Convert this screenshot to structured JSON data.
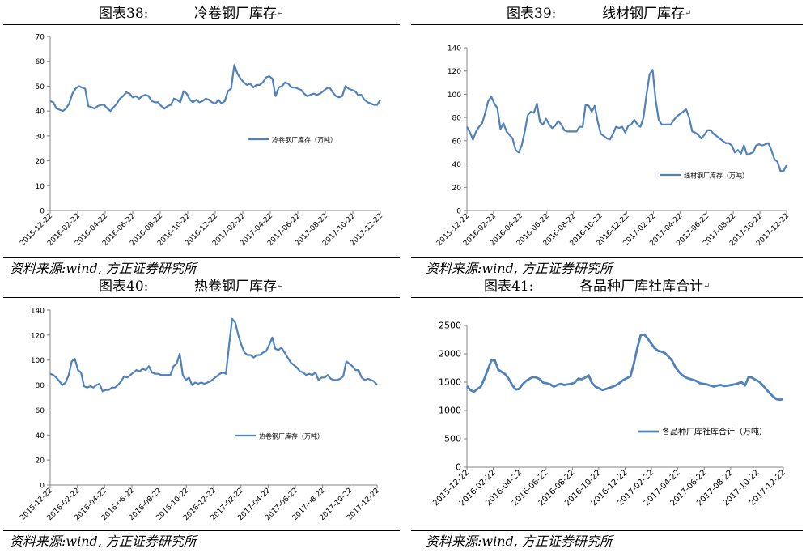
{
  "colors": {
    "line": "#4f81bd",
    "axis": "#868686",
    "text": "#000000"
  },
  "return_mark": "↵",
  "panels": [
    {
      "title_num": "图表38:",
      "title_text": "冷卷钢厂库存",
      "source": "资料来源:wind, 方正证券研究所",
      "chart_data": {
        "type": "line",
        "ylim": [
          0,
          70
        ],
        "yticks": [
          0,
          10,
          20,
          30,
          40,
          50,
          60,
          70
        ],
        "xtick_labels": [
          "2015-12-22",
          "2016-02-22",
          "2016-04-22",
          "2016-06-22",
          "2016-08-22",
          "2016-10-22",
          "2016-12-22",
          "2017-02-22",
          "2017-04-22",
          "2017-06-22",
          "2017-08-22",
          "2017-10-22",
          "2017-12-22"
        ],
        "legend": "冷卷钢厂库存（万吨）",
        "values": [
          44,
          43.5,
          41,
          40.5,
          40,
          41,
          43,
          47,
          49,
          50,
          49.5,
          49,
          42,
          41.5,
          41,
          42,
          42.5,
          42.5,
          41,
          40,
          41.5,
          43,
          45,
          46,
          47.5,
          47,
          45.5,
          46,
          45,
          46,
          46.5,
          46,
          44,
          43.5,
          43.5,
          42,
          41,
          42,
          42.5,
          45,
          44.5,
          43.5,
          48,
          47,
          44.5,
          43.5,
          44.5,
          43.5,
          44,
          45,
          44.5,
          43.5,
          43,
          44.5,
          43,
          44,
          48,
          49,
          58.5,
          55,
          53,
          51.5,
          50.5,
          51,
          49.5,
          50.5,
          50.5,
          51.5,
          53.5,
          54,
          53,
          46,
          49.5,
          50,
          51.5,
          51,
          49.5,
          49.5,
          49,
          48.5,
          47,
          46,
          46.5,
          47,
          46.5,
          47,
          48,
          49,
          49.5,
          47.5,
          46,
          45.5,
          46,
          50,
          49,
          48.5,
          48,
          46.5,
          46.5,
          44.5,
          43.5,
          43,
          42.5,
          42.5,
          44.5
        ]
      }
    },
    {
      "title_num": "图表39:",
      "title_text": "线材钢厂库存",
      "source": "资料来源:wind, 方正证券研究所",
      "chart_data": {
        "type": "line",
        "ylim": [
          0,
          140
        ],
        "yticks": [
          0,
          20,
          40,
          60,
          80,
          100,
          120,
          140
        ],
        "xtick_labels": [
          "2015-12-22",
          "2016-02-22",
          "2016-04-22",
          "2016-06-22",
          "2016-08-22",
          "2016-10-22",
          "2016-12-22",
          "2017-02-22",
          "2017-04-22",
          "2017-06-22",
          "2017-08-22",
          "2017-10-22",
          "2017-12-22"
        ],
        "legend": "线材钢厂库存（万吨）",
        "values": [
          72,
          67,
          61,
          68,
          72,
          75,
          84,
          94,
          98,
          92,
          88,
          70,
          75,
          68,
          65,
          62,
          52,
          50,
          56,
          68,
          82,
          85,
          84,
          92,
          76,
          74,
          79,
          74,
          71,
          73,
          77,
          74,
          69,
          68,
          68,
          68,
          68,
          72,
          72,
          91,
          90,
          85,
          90,
          76,
          66,
          64,
          62,
          61,
          66,
          72,
          71,
          72,
          67,
          73,
          74,
          78,
          74,
          72,
          80,
          100,
          117,
          121,
          95,
          78,
          74,
          74,
          74,
          74,
          78,
          81,
          83,
          85,
          87,
          80,
          68,
          67,
          65,
          62,
          65,
          69,
          69,
          66,
          64,
          62,
          60,
          58,
          58,
          56,
          50,
          52,
          49,
          56,
          48,
          49,
          50,
          56,
          57,
          56,
          57,
          58,
          52,
          44,
          42,
          34,
          34,
          39
        ]
      }
    },
    {
      "title_num": "图表40:",
      "title_text": "热卷钢厂库存",
      "source": "资料来源:wind, 方正证券研究所",
      "chart_data": {
        "type": "line",
        "ylim": [
          0,
          140
        ],
        "yticks": [
          0,
          20,
          40,
          60,
          80,
          100,
          120,
          140
        ],
        "xtick_labels": [
          "2015-12-22",
          "2016-02-22",
          "2016-04-22",
          "2016-06-22",
          "2016-08-22",
          "2016-10-22",
          "2016-12-22",
          "2017-02-22",
          "2017-04-22",
          "2017-06-22",
          "2017-08-22",
          "2017-10-22",
          "2017-12-22"
        ],
        "legend": "热卷钢厂库存（万吨）",
        "values": [
          89,
          88,
          86,
          83,
          80,
          82,
          88,
          99,
          101,
          92,
          90,
          79,
          78,
          79,
          78,
          80,
          81,
          75,
          76,
          76,
          78,
          78,
          80,
          83,
          87,
          86,
          88,
          90,
          92,
          91,
          93,
          92,
          95,
          90,
          89,
          89,
          88,
          88,
          88,
          88,
          95,
          97,
          105,
          88,
          84,
          86,
          80,
          82,
          81,
          82,
          81,
          82,
          83,
          85,
          87,
          89,
          90,
          89,
          112,
          133,
          130,
          120,
          112,
          106,
          104,
          104,
          102,
          104,
          104,
          106,
          107,
          112,
          118,
          109,
          108,
          110,
          106,
          102,
          98,
          96,
          94,
          91,
          90,
          88,
          89,
          88,
          90,
          84,
          86,
          86,
          88,
          85,
          84,
          84,
          85,
          87,
          99,
          97,
          95,
          92,
          92,
          86,
          84,
          85,
          84,
          83,
          80
        ]
      }
    },
    {
      "title_num": "图表41:",
      "title_text": "各品种厂库社库合计",
      "source": "资料来源:wind, 方正证券研究所",
      "chart_data": {
        "type": "line",
        "ylim": [
          0,
          2500
        ],
        "yticks": [
          0,
          500,
          1000,
          1500,
          2000,
          2500
        ],
        "xtick_labels": [
          "2015-12-22",
          "2016-02-22",
          "2016-04-22",
          "2016-06-22",
          "2016-08-22",
          "2016-10-22",
          "2016-12-22",
          "2017-02-22",
          "2017-04-22",
          "2017-06-22",
          "2017-08-22",
          "2017-10-22",
          "2017-12-22"
        ],
        "legend": "各品种厂库社库合计（万吨）",
        "values": [
          1430,
          1360,
          1330,
          1380,
          1420,
          1560,
          1720,
          1880,
          1890,
          1720,
          1680,
          1640,
          1560,
          1450,
          1370,
          1380,
          1460,
          1520,
          1560,
          1590,
          1580,
          1550,
          1490,
          1480,
          1460,
          1420,
          1450,
          1470,
          1450,
          1460,
          1470,
          1490,
          1560,
          1550,
          1580,
          1620,
          1480,
          1420,
          1390,
          1360,
          1380,
          1400,
          1420,
          1450,
          1490,
          1540,
          1570,
          1600,
          1820,
          2100,
          2330,
          2340,
          2270,
          2180,
          2100,
          2050,
          2040,
          2010,
          1950,
          1880,
          1760,
          1680,
          1620,
          1580,
          1560,
          1540,
          1520,
          1480,
          1470,
          1460,
          1440,
          1420,
          1440,
          1450,
          1430,
          1440,
          1450,
          1460,
          1480,
          1500,
          1440,
          1590,
          1580,
          1540,
          1510,
          1450,
          1380,
          1310,
          1250,
          1200,
          1190,
          1200
        ]
      }
    }
  ]
}
